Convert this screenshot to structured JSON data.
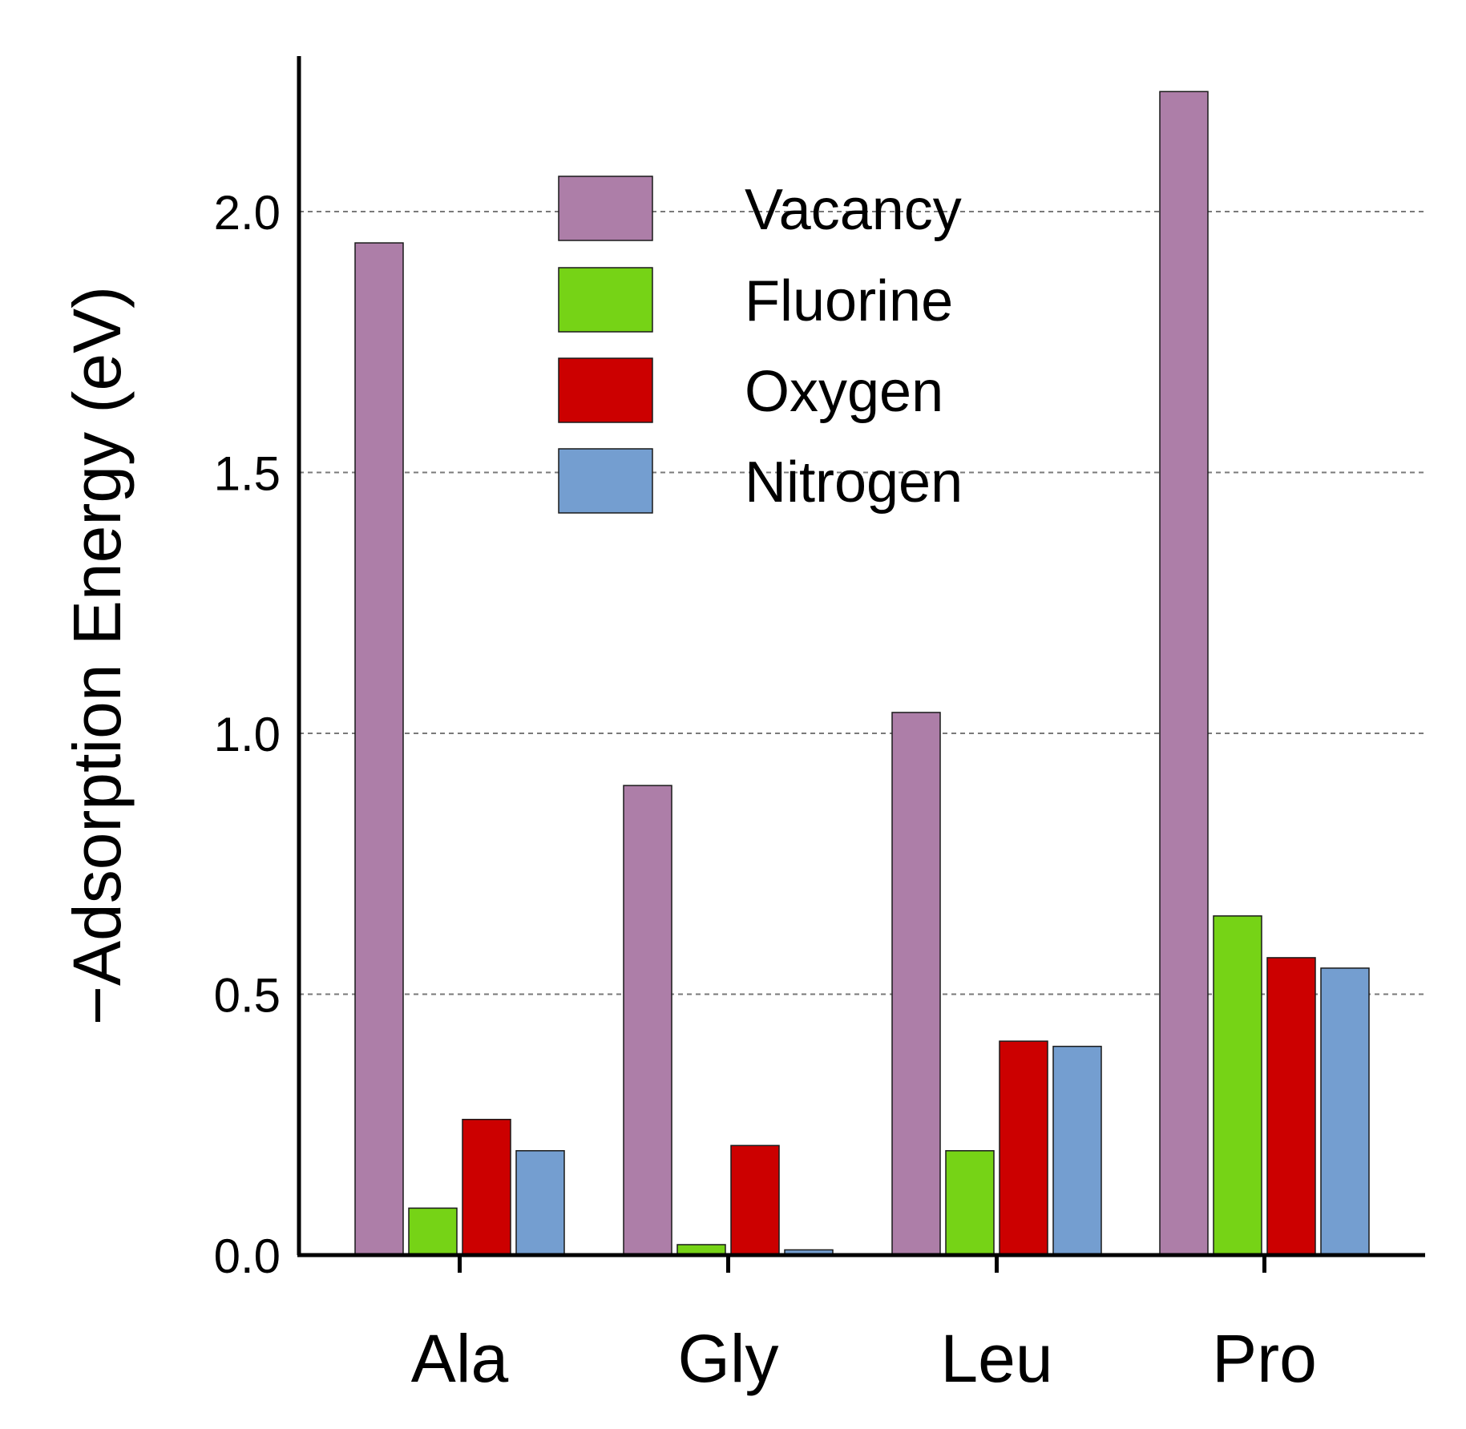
{
  "chart_data": {
    "type": "bar",
    "title": "",
    "xlabel": "",
    "ylabel": "−Adsorption Energy (eV)",
    "categories": [
      "Ala",
      "Gly",
      "Leu",
      "Pro"
    ],
    "series": [
      {
        "name": "Vacancy",
        "color": "#ad7ea8",
        "values": [
          1.94,
          0.9,
          1.04,
          2.23
        ]
      },
      {
        "name": "Fluorine",
        "color": "#76d316",
        "values": [
          0.09,
          0.02,
          0.2,
          0.65
        ]
      },
      {
        "name": "Oxygen",
        "color": "#cc0000",
        "values": [
          0.26,
          0.21,
          0.41,
          0.57
        ]
      },
      {
        "name": "Nitrogen",
        "color": "#749ed0",
        "values": [
          0.2,
          0.01,
          0.4,
          0.55
        ]
      }
    ],
    "ylim": [
      0,
      2.3
    ],
    "yticks": [
      "0.0",
      "0.5",
      "1.0",
      "1.5",
      "2.0"
    ],
    "grid": "horizontal dashed",
    "legend_position": "top-center"
  }
}
